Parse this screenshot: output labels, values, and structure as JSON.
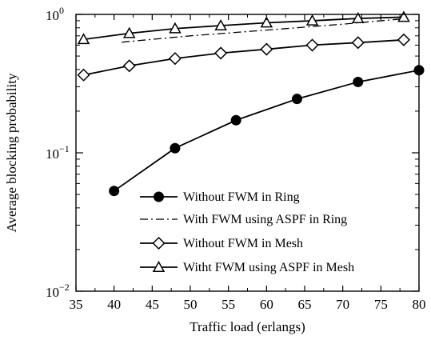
{
  "chart_data": {
    "type": "line",
    "title": "",
    "xlabel": "Traffic load (erlangs)",
    "ylabel": "Average blocking probability",
    "xlim": [
      35,
      80
    ],
    "ylim": [
      0.01,
      1
    ],
    "yscale": "log",
    "grid": false,
    "legend_position": "bottom-right",
    "x_ticks": [
      "35",
      "40",
      "45",
      "50",
      "55",
      "60",
      "65",
      "70",
      "75",
      "80"
    ],
    "y_ticks": [
      {
        "base": "10",
        "exp": "0"
      },
      {
        "base": "10",
        "exp": "−1"
      },
      {
        "base": "10",
        "exp": "−2"
      }
    ],
    "series": [
      {
        "name": "Without FWM in Ring",
        "marker": "filled-circle",
        "line": "solid",
        "x": [
          40,
          48,
          56,
          64,
          72,
          80
        ],
        "y": [
          0.053,
          0.108,
          0.172,
          0.245,
          0.325,
          0.395
        ]
      },
      {
        "name": "With FWM using ASPF in Ring",
        "marker": "none",
        "line": "dash-dot",
        "x": [
          41,
          50,
          60,
          70,
          78
        ],
        "y": [
          0.63,
          0.7,
          0.77,
          0.85,
          0.93
        ]
      },
      {
        "name": "Without FWM in Mesh",
        "marker": "open-diamond",
        "line": "solid",
        "x": [
          36,
          42,
          48,
          54,
          60,
          66,
          72,
          78
        ],
        "y": [
          0.365,
          0.425,
          0.48,
          0.525,
          0.56,
          0.6,
          0.625,
          0.655
        ]
      },
      {
        "name": "Witht FWM using ASPF in Mesh",
        "marker": "open-triangle",
        "line": "solid",
        "x": [
          36,
          42,
          48,
          54,
          60,
          66,
          72,
          78
        ],
        "y": [
          0.66,
          0.73,
          0.79,
          0.83,
          0.87,
          0.9,
          0.935,
          0.955
        ]
      }
    ]
  }
}
